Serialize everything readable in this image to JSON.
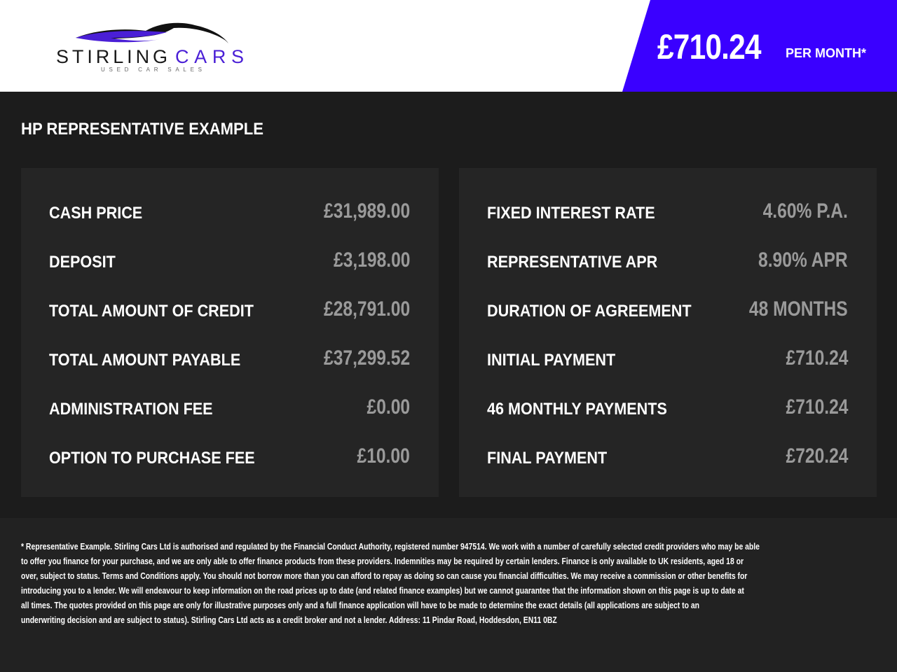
{
  "brand": {
    "name": "STIRLING CARS",
    "name_part1": "STIRLING",
    "name_part2": "CARS",
    "tagline": "USED CAR SALES",
    "accent": "#3a00ff"
  },
  "header": {
    "monthly_price": "£710.24",
    "per_month_label": "PER MONTH*"
  },
  "section_title": "HP REPRESENTATIVE EXAMPLE",
  "left_panel": [
    {
      "label": "CASH PRICE",
      "value": "£31,989.00"
    },
    {
      "label": "DEPOSIT",
      "value": "£3,198.00"
    },
    {
      "label": "TOTAL AMOUNT OF CREDIT",
      "value": "£28,791.00"
    },
    {
      "label": "TOTAL AMOUNT PAYABLE",
      "value": "£37,299.52"
    },
    {
      "label": "ADMINISTRATION FEE",
      "value": "£0.00"
    },
    {
      "label": "OPTION TO PURCHASE FEE",
      "value": "£10.00"
    }
  ],
  "right_panel": [
    {
      "label": "FIXED INTEREST RATE",
      "value": "4.60% P.A."
    },
    {
      "label": "REPRESENTATIVE APR",
      "value": "8.90% APR"
    },
    {
      "label": "DURATION OF AGREEMENT",
      "value": "48 MONTHS"
    },
    {
      "label": "INITIAL PAYMENT",
      "value": "£710.24"
    },
    {
      "label": "46 MONTHLY PAYMENTS",
      "value": "£710.24"
    },
    {
      "label": "FINAL PAYMENT",
      "value": "£720.24"
    }
  ],
  "disclaimer_lines": [
    "* Representative Example. Stirling Cars Ltd is authorised and regulated by the Financial Conduct Authority, registered number 947514. We work with a number of carefully selected credit providers who may be able",
    "to offer you finance for your purchase, and we are only able to offer finance products from these providers. Indemnities may be required by certain lenders. Finance is only available to UK residents, aged 18 or",
    "over, subject to status. Terms and Conditions apply. You should not borrow more than you can afford to repay as doing so can cause you financial difficulties. We may receive a commission or other benefits for",
    "introducing you to a lender. We will endeavour to keep information on the road prices up to date (and related finance examples) but we cannot guarantee that the information shown on this page is up to date at",
    "all times. The quotes provided on this page are only for illustrative purposes only and a full finance application will have to be made to determine the exact details (all applications are subject to an",
    "underwriting decision and are subject to status). Stirling Cars Ltd acts as a credit broker and not a lender. Address: 11 Pindar Road, Hoddesdon, EN11 0BZ"
  ]
}
